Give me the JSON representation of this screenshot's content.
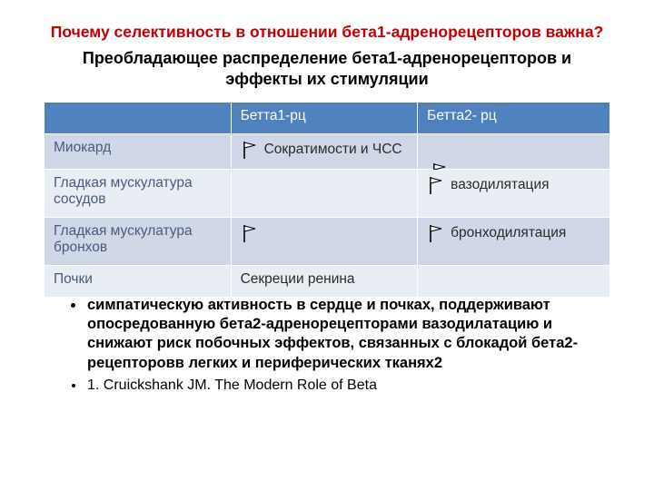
{
  "title": "Почему селективность в отношении бета1-адренорецепторов важна?",
  "subtitle": "Преобладающее распределение бета1-адренорецепторов и эффекты их стимуляции",
  "table": {
    "header_bg": "#4f81bd",
    "header_fg": "#ffffff",
    "band1_bg": "#d0d8e8",
    "band2_bg": "#e9edf4",
    "rowhdr_color": "#4a5a7a",
    "columns": [
      "",
      "Бетта1-рц",
      "Бетта2- рц"
    ],
    "rows": [
      {
        "label": "Миокард",
        "c1": "Сократимости и ЧСС",
        "c2": "",
        "flag_c1": true,
        "flag_c2": false,
        "float_c2": true
      },
      {
        "label": "Гладкая мускулатура сосудов",
        "c1": "",
        "c2": "вазодилятация",
        "flag_c1": false,
        "flag_c2": true,
        "float_c2": false
      },
      {
        "label": "Гладкая мускулатура бронхов",
        "c1": "",
        "c2": "бронходилятация",
        "flag_c1": true,
        "flag_c2": true,
        "float_c2": false
      },
      {
        "label": "Почки",
        "c1": "Секреции ренина",
        "c2": "",
        "flag_c1": false,
        "flag_c2": false,
        "float_c2": false
      }
    ]
  },
  "flag_svg": {
    "pole_color": "#000000",
    "flag_stroke": "#000000",
    "flag_fill": "#ffffff",
    "width": 22,
    "height": 22
  },
  "bullets": [
    "симпатическую активность в сердце и почках, поддерживают опосредованную бета2-адренорецепторами вазодилатацию и снижают риск побочных эффектов, связанных с блокадой бета2- рецепторовв легких и периферических тканях2",
    "1. Cruickshank JM. The Modern Role of Beta"
  ]
}
